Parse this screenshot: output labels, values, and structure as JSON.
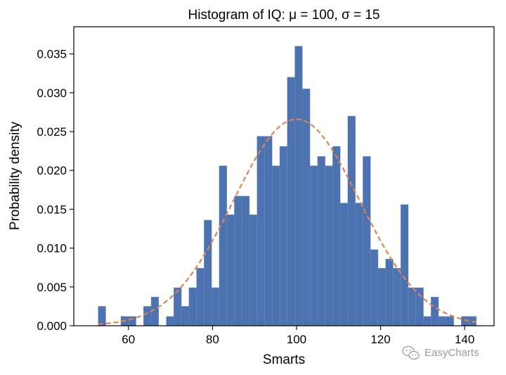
{
  "chart_data": {
    "type": "bar",
    "title": "Histogram of IQ: μ = 100, σ = 15",
    "xlabel": "Smarts",
    "ylabel": "Probability density",
    "xlim": [
      47,
      147
    ],
    "ylim": [
      0,
      0.0385
    ],
    "xticks": [
      60,
      80,
      100,
      120,
      140
    ],
    "yticks": [
      0.0,
      0.005,
      0.01,
      0.015,
      0.02,
      0.025,
      0.03,
      0.035
    ],
    "ytick_labels": [
      "0.000",
      "0.005",
      "0.010",
      "0.015",
      "0.020",
      "0.025",
      "0.030",
      "0.035"
    ],
    "grid": false,
    "bar_color": "#4c72b0",
    "bin_start": 52.8,
    "bin_width": 1.8,
    "values": [
      0.0025,
      0.0,
      0.0,
      0.0012,
      0.0012,
      0.0,
      0.0025,
      0.0037,
      0.0,
      0.0012,
      0.0049,
      0.0025,
      0.0049,
      0.0074,
      0.0136,
      0.0049,
      0.0206,
      0.0143,
      0.0167,
      0.0167,
      0.0143,
      0.0244,
      0.0244,
      0.0206,
      0.0231,
      0.032,
      0.036,
      0.0305,
      0.0206,
      0.0218,
      0.0206,
      0.0231,
      0.0158,
      0.027,
      0.0158,
      0.0218,
      0.0098,
      0.0074,
      0.0086,
      0.0074,
      0.0156,
      0.0049,
      0.0049,
      0.0012,
      0.0037,
      0.0012,
      0.0012,
      0.0,
      0.0012,
      0.0012
    ],
    "fit_curve": {
      "type": "line",
      "distribution": "normal",
      "mu": 100,
      "sigma": 15,
      "color": "#dd8452",
      "style": "dashed"
    }
  },
  "watermark": {
    "icon": "wechat-icon",
    "text": "EasyCharts"
  }
}
